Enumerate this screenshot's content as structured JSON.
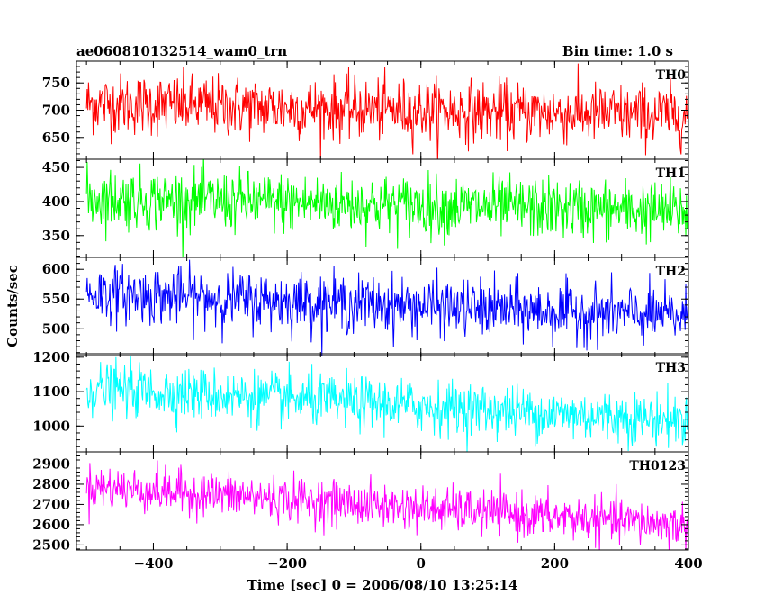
{
  "header": {
    "title": "ae060810132514_wam0_trn",
    "bin_time": "Bin time: 1.0 s"
  },
  "chart_data": {
    "type": "line",
    "x_range": [
      -515,
      400
    ],
    "xlabel": "Time [sec] 0 = 2006/08/10 13:25:14",
    "ylabel": "Counts/sec",
    "x_ticks": [
      -400,
      -200,
      0,
      200,
      400
    ],
    "x_tick_labels": [
      "−400",
      "−200",
      "0",
      "200",
      "400"
    ],
    "panels": [
      {
        "name": "TH0",
        "color": "#ff0000",
        "ylim": [
          610,
          790
        ],
        "y_ticks": [
          650,
          700,
          750
        ],
        "y_tick_labels": [
          "650",
          "700",
          "750"
        ],
        "trend_start": 712,
        "trend_end": 690,
        "noise_sd": 28
      },
      {
        "name": "TH1",
        "color": "#00ff00",
        "ylim": [
          318,
          462
        ],
        "y_ticks": [
          350,
          400,
          450
        ],
        "y_tick_labels": [
          "350",
          "400",
          "450"
        ],
        "trend_start": 405,
        "trend_end": 385,
        "noise_sd": 22
      },
      {
        "name": "TH2",
        "color": "#0000ff",
        "ylim": [
          455,
          620
        ],
        "y_ticks": [
          500,
          550,
          600
        ],
        "y_tick_labels": [
          "500",
          "550",
          "600"
        ],
        "trend_start": 560,
        "trend_end": 520,
        "noise_sd": 24
      },
      {
        "name": "TH3",
        "color": "#00ffff",
        "ylim": [
          925,
          1210
        ],
        "y_ticks": [
          1000,
          1100,
          1200
        ],
        "y_tick_labels": [
          "1000",
          "1100",
          "1200"
        ],
        "trend_start": 1110,
        "trend_end": 1015,
        "noise_sd": 38
      },
      {
        "name": "TH0123",
        "color": "#ff00ff",
        "ylim": [
          2475,
          2960
        ],
        "y_ticks": [
          2500,
          2600,
          2700,
          2800,
          2900
        ],
        "y_tick_labels": [
          "2500",
          "2600",
          "2700",
          "2800",
          "2900"
        ],
        "trend_start": 2790,
        "trend_end": 2595,
        "noise_sd": 55
      }
    ]
  }
}
